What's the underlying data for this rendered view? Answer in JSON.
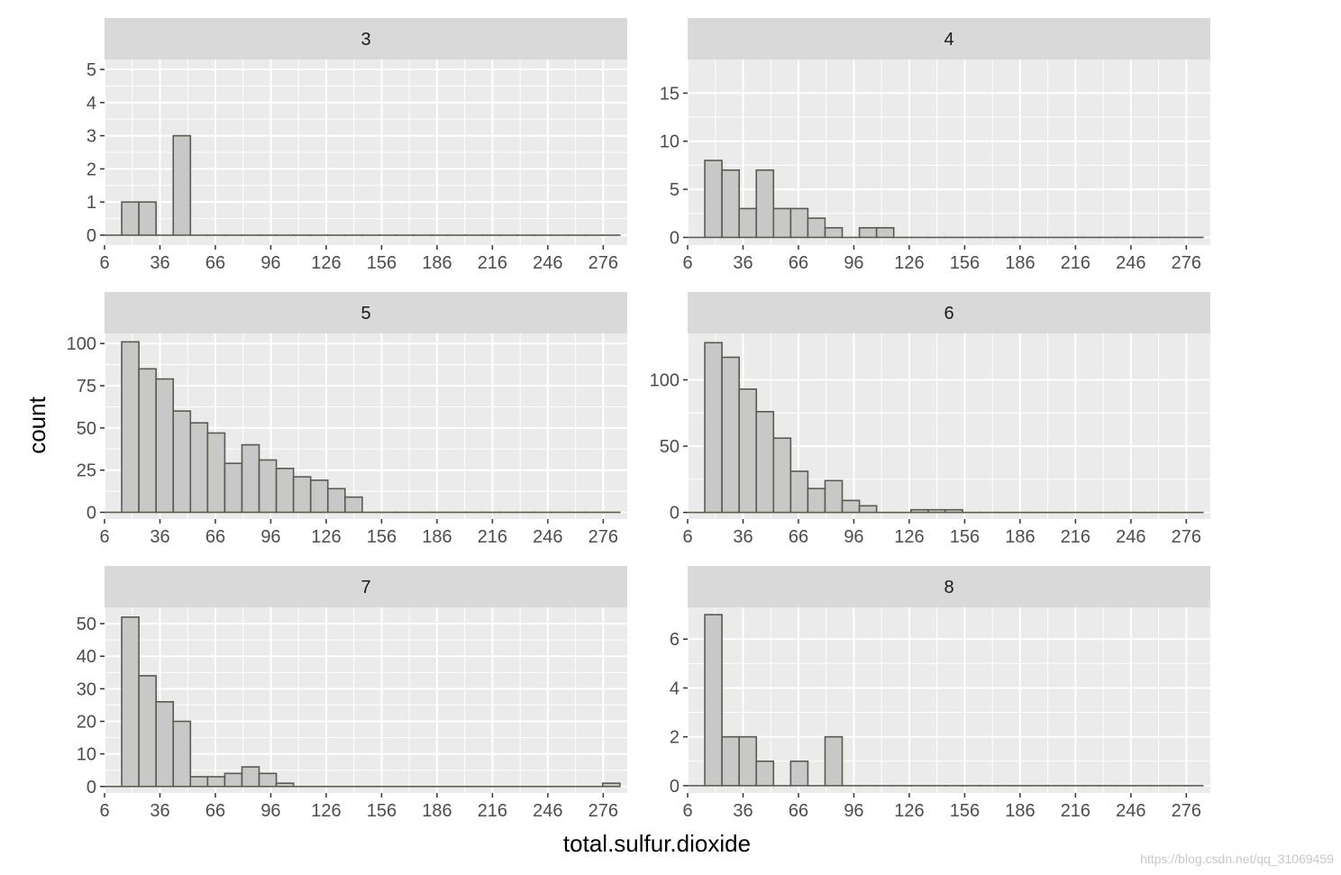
{
  "xlabel": "total.sulfur.dioxide",
  "ylabel": "count",
  "watermark": "https://blog.csdn.net/qq_31069459",
  "colors": {
    "panel_bg": "#ebebeb",
    "strip_bg": "#d9d9d9",
    "grid": "#ffffff",
    "bar_fill": "#c8c8c8",
    "bar_stroke": "#5a5a50"
  },
  "chart_data": {
    "type": "bar",
    "subtype": "faceted-histogram",
    "bins": {
      "start": 6,
      "width": 9.3,
      "count": 30
    },
    "xlim": [
      6,
      289
    ],
    "x_ticks": [
      6,
      36,
      66,
      96,
      126,
      156,
      186,
      216,
      246,
      276
    ],
    "x_tick_labels": [
      "6",
      "36",
      "66",
      "96",
      "126",
      "156",
      "186",
      "216",
      "246",
      "276"
    ],
    "facets": [
      {
        "label": "3",
        "ylim": [
          -0.3,
          5.3
        ],
        "y_ticks": [
          0,
          1,
          2,
          3,
          4,
          5
        ],
        "y_tick_labels": [
          "0",
          "1",
          "2",
          "3",
          "4",
          "5"
        ],
        "counts": [
          0,
          1,
          1,
          0,
          3,
          0,
          0,
          0,
          0,
          0,
          0,
          0,
          0,
          0,
          0,
          0,
          0,
          0,
          0,
          0,
          0,
          0,
          0,
          0,
          0,
          0,
          0,
          0,
          0,
          0
        ]
      },
      {
        "label": "4",
        "ylim": [
          -0.8,
          18.5
        ],
        "y_ticks": [
          0,
          5,
          10,
          15
        ],
        "y_tick_labels": [
          "0",
          "5",
          "10",
          "15"
        ],
        "counts": [
          0,
          8,
          7,
          3,
          7,
          3,
          3,
          2,
          1,
          0,
          1,
          1,
          0,
          0,
          0,
          0,
          0,
          0,
          0,
          0,
          0,
          0,
          0,
          0,
          0,
          0,
          0,
          0,
          0,
          0
        ]
      },
      {
        "label": "5",
        "ylim": [
          -4,
          106
        ],
        "y_ticks": [
          0,
          25,
          50,
          75,
          100
        ],
        "y_tick_labels": [
          "0",
          "25",
          "50",
          "75",
          "100"
        ],
        "counts": [
          0,
          101,
          85,
          79,
          60,
          53,
          47,
          29,
          40,
          31,
          26,
          21,
          19,
          14,
          9,
          0,
          0,
          0,
          0,
          0,
          0,
          0,
          0,
          0,
          0,
          0,
          0,
          0,
          0,
          0
        ]
      },
      {
        "label": "6",
        "ylim": [
          -5,
          135
        ],
        "y_ticks": [
          0,
          50,
          100
        ],
        "y_tick_labels": [
          "0",
          "50",
          "100"
        ],
        "counts": [
          0,
          128,
          117,
          93,
          76,
          56,
          31,
          18,
          24,
          9,
          5,
          0,
          0,
          2,
          2,
          2,
          0,
          0,
          0,
          0,
          0,
          0,
          0,
          0,
          0,
          0,
          0,
          0,
          0,
          0
        ]
      },
      {
        "label": "7",
        "ylim": [
          -2,
          55
        ],
        "y_ticks": [
          0,
          10,
          20,
          30,
          40,
          50
        ],
        "y_tick_labels": [
          "0",
          "10",
          "20",
          "30",
          "40",
          "50"
        ],
        "counts": [
          0,
          52,
          34,
          26,
          20,
          3,
          3,
          4,
          6,
          4,
          1,
          0,
          0,
          0,
          0,
          0,
          0,
          0,
          0,
          0,
          0,
          0,
          0,
          0,
          0,
          0,
          0,
          0,
          0,
          1
        ]
      },
      {
        "label": "8",
        "ylim": [
          -0.3,
          7.3
        ],
        "y_ticks": [
          0,
          2,
          4,
          6
        ],
        "y_tick_labels": [
          "0",
          "2",
          "4",
          "6"
        ],
        "counts": [
          0,
          7,
          2,
          2,
          1,
          0,
          1,
          0,
          2,
          0,
          0,
          0,
          0,
          0,
          0,
          0,
          0,
          0,
          0,
          0,
          0,
          0,
          0,
          0,
          0,
          0,
          0,
          0,
          0,
          0
        ]
      }
    ],
    "grid": true,
    "legend": "none"
  }
}
